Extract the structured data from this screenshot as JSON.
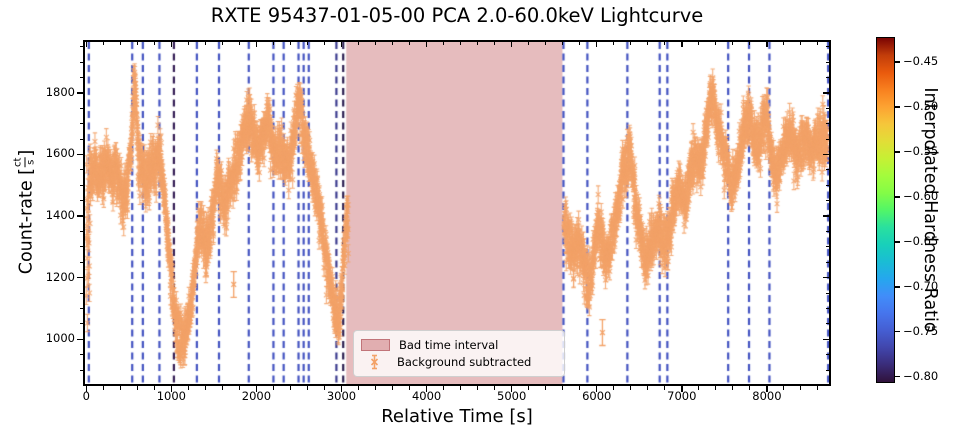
{
  "figure": {
    "title": "RXTE 95437-01-05-00 PCA 2.0-60.0keV Lightcurve",
    "xlabel": "Relative Time [s]",
    "ylabel_prefix": "Count-rate [",
    "ylabel_frac_num": "ct",
    "ylabel_frac_den": "s",
    "ylabel_suffix": "]"
  },
  "legend": {
    "bad_time_label": "Bad time interval",
    "background_label": "Background subtracted"
  },
  "colorbar": {
    "label": "Interpolated Hardness Ratio",
    "colormap": "turbo",
    "value_range": [
      -0.807,
      -0.422
    ],
    "ticks": [
      -0.45,
      -0.5,
      -0.55,
      -0.6,
      -0.65,
      -0.7,
      -0.75,
      -0.8
    ],
    "tick_labels": [
      "−0.45",
      "−0.50",
      "−0.55",
      "−0.60",
      "−0.65",
      "−0.70",
      "−0.75",
      "−0.80"
    ],
    "gradient_stops": [
      [
        0,
        "#30123b"
      ],
      [
        5,
        "#3a2c79"
      ],
      [
        10,
        "#4146ac"
      ],
      [
        15,
        "#455ed2"
      ],
      [
        20,
        "#4675ed"
      ],
      [
        25,
        "#418df9"
      ],
      [
        30,
        "#25a7ee"
      ],
      [
        35,
        "#1abdd4"
      ],
      [
        40,
        "#18d0ba"
      ],
      [
        45,
        "#2ae09e"
      ],
      [
        50,
        "#52f667"
      ],
      [
        55,
        "#84fc46"
      ],
      [
        60,
        "#a4fc3c"
      ],
      [
        65,
        "#c6f034"
      ],
      [
        70,
        "#e2dd37"
      ],
      [
        75,
        "#f6c63a"
      ],
      [
        80,
        "#fda332"
      ],
      [
        85,
        "#f8801f"
      ],
      [
        90,
        "#e95a0d"
      ],
      [
        95,
        "#c23d0a"
      ],
      [
        100,
        "#7a0403"
      ]
    ]
  },
  "chart_data": {
    "type": "scatter",
    "title": "RXTE 95437-01-05-00 PCA 2.0-60.0keV Lightcurve",
    "xlabel": "Relative Time [s]",
    "ylabel": "Count-rate [ct/s]",
    "xlim": [
      -15,
      8730
    ],
    "ylim": [
      855,
      1965
    ],
    "x_ticks": [
      0,
      1000,
      2000,
      3000,
      4000,
      5000,
      6000,
      7000,
      8000
    ],
    "x_tick_labels": [
      "0",
      "1000",
      "2000",
      "3000",
      "4000",
      "5000",
      "6000",
      "7000",
      "8000"
    ],
    "x_minor_step": 200,
    "y_ticks": [
      1000,
      1200,
      1400,
      1600,
      1800
    ],
    "y_tick_labels": [
      "1000",
      "1200",
      "1400",
      "1600",
      "1800"
    ],
    "y_minor_step": 50,
    "grid": false,
    "legend_position": "lower center",
    "bad_time_interval": {
      "start": 3056,
      "end": 5597,
      "color": "rgba(199,106,110,0.45)",
      "label": "Bad time interval"
    },
    "vlines": [
      {
        "t": 30,
        "color": "#4353c1"
      },
      {
        "t": 540,
        "color": "#4353c1"
      },
      {
        "t": 665,
        "color": "#4353c1"
      },
      {
        "t": 860,
        "color": "#4353c1"
      },
      {
        "t": 1030,
        "color": "#341e55"
      },
      {
        "t": 1300,
        "color": "#4353c1"
      },
      {
        "t": 1560,
        "color": "#4353c1"
      },
      {
        "t": 1910,
        "color": "#4353c1"
      },
      {
        "t": 2200,
        "color": "#4353c1"
      },
      {
        "t": 2320,
        "color": "#4353c1"
      },
      {
        "t": 2495,
        "color": "#4353c1"
      },
      {
        "t": 2555,
        "color": "#4353c1"
      },
      {
        "t": 2615,
        "color": "#4353c1"
      },
      {
        "t": 2940,
        "color": "#3c3c8f"
      },
      {
        "t": 3020,
        "color": "#2c1f52"
      },
      {
        "t": 5609,
        "color": "#4353c1"
      },
      {
        "t": 5890,
        "color": "#4353c1"
      },
      {
        "t": 6360,
        "color": "#4353c1"
      },
      {
        "t": 6740,
        "color": "#4353c1"
      },
      {
        "t": 6830,
        "color": "#4353c1"
      },
      {
        "t": 7545,
        "color": "#4353c1"
      },
      {
        "t": 7790,
        "color": "#4353c1"
      },
      {
        "t": 8030,
        "color": "#4353c1"
      },
      {
        "t": 8720,
        "color": "#4353c1"
      }
    ],
    "series": [
      {
        "name": "Background subtracted",
        "marker": "x",
        "color": "#f3a268",
        "segments": [
          [
            0,
            3080
          ],
          [
            5615,
            8710
          ]
        ],
        "sample_step": 2,
        "noise_sigma": 38,
        "start_burst": {
          "t_end": 50,
          "sigma": 165
        },
        "error_bar": 28,
        "envelope": [
          [
            0,
            1250
          ],
          [
            20,
            1300
          ],
          [
            45,
            1500
          ],
          [
            100,
            1550
          ],
          [
            150,
            1520
          ],
          [
            200,
            1560
          ],
          [
            250,
            1570
          ],
          [
            300,
            1540
          ],
          [
            350,
            1560
          ],
          [
            400,
            1500
          ],
          [
            440,
            1440
          ],
          [
            480,
            1510
          ],
          [
            520,
            1600
          ],
          [
            555,
            1750
          ],
          [
            570,
            1860
          ],
          [
            585,
            1760
          ],
          [
            610,
            1620
          ],
          [
            650,
            1550
          ],
          [
            700,
            1500
          ],
          [
            750,
            1540
          ],
          [
            800,
            1560
          ],
          [
            840,
            1600
          ],
          [
            880,
            1560
          ],
          [
            920,
            1460
          ],
          [
            960,
            1330
          ],
          [
            1000,
            1180
          ],
          [
            1050,
            1050
          ],
          [
            1100,
            1005
          ],
          [
            1150,
            1000
          ],
          [
            1200,
            1060
          ],
          [
            1250,
            1170
          ],
          [
            1300,
            1310
          ],
          [
            1340,
            1370
          ],
          [
            1380,
            1330
          ],
          [
            1420,
            1300
          ],
          [
            1460,
            1360
          ],
          [
            1500,
            1440
          ],
          [
            1540,
            1520
          ],
          [
            1580,
            1490
          ],
          [
            1620,
            1450
          ],
          [
            1660,
            1470
          ],
          [
            1700,
            1520
          ],
          [
            1740,
            1540
          ],
          [
            1780,
            1570
          ],
          [
            1820,
            1620
          ],
          [
            1860,
            1680
          ],
          [
            1900,
            1720
          ],
          [
            1940,
            1690
          ],
          [
            1980,
            1640
          ],
          [
            2020,
            1610
          ],
          [
            2060,
            1650
          ],
          [
            2100,
            1690
          ],
          [
            2140,
            1700
          ],
          [
            2180,
            1640
          ],
          [
            2220,
            1590
          ],
          [
            2260,
            1600
          ],
          [
            2300,
            1610
          ],
          [
            2340,
            1570
          ],
          [
            2380,
            1580
          ],
          [
            2420,
            1620
          ],
          [
            2460,
            1700
          ],
          [
            2500,
            1790
          ],
          [
            2530,
            1720
          ],
          [
            2560,
            1640
          ],
          [
            2600,
            1610
          ],
          [
            2640,
            1570
          ],
          [
            2680,
            1520
          ],
          [
            2720,
            1460
          ],
          [
            2760,
            1390
          ],
          [
            2800,
            1310
          ],
          [
            2840,
            1240
          ],
          [
            2880,
            1170
          ],
          [
            2920,
            1100
          ],
          [
            2960,
            1060
          ],
          [
            3000,
            1150
          ],
          [
            3030,
            1280
          ],
          [
            3060,
            1400
          ],
          [
            5620,
            1380
          ],
          [
            5660,
            1350
          ],
          [
            5700,
            1310
          ],
          [
            5740,
            1280
          ],
          [
            5780,
            1290
          ],
          [
            5820,
            1270
          ],
          [
            5860,
            1230
          ],
          [
            5900,
            1180
          ],
          [
            5940,
            1220
          ],
          [
            5980,
            1320
          ],
          [
            6020,
            1380
          ],
          [
            6060,
            1330
          ],
          [
            6100,
            1260
          ],
          [
            6140,
            1280
          ],
          [
            6180,
            1340
          ],
          [
            6220,
            1390
          ],
          [
            6260,
            1440
          ],
          [
            6300,
            1520
          ],
          [
            6350,
            1580
          ],
          [
            6400,
            1600
          ],
          [
            6440,
            1500
          ],
          [
            6480,
            1390
          ],
          [
            6520,
            1320
          ],
          [
            6560,
            1280
          ],
          [
            6600,
            1260
          ],
          [
            6640,
            1300
          ],
          [
            6680,
            1340
          ],
          [
            6720,
            1370
          ],
          [
            6760,
            1330
          ],
          [
            6800,
            1300
          ],
          [
            6840,
            1340
          ],
          [
            6880,
            1390
          ],
          [
            6920,
            1440
          ],
          [
            6960,
            1490
          ],
          [
            7000,
            1470
          ],
          [
            7040,
            1440
          ],
          [
            7080,
            1510
          ],
          [
            7120,
            1570
          ],
          [
            7160,
            1600
          ],
          [
            7200,
            1560
          ],
          [
            7240,
            1590
          ],
          [
            7280,
            1660
          ],
          [
            7320,
            1750
          ],
          [
            7360,
            1790
          ],
          [
            7400,
            1720
          ],
          [
            7440,
            1670
          ],
          [
            7480,
            1630
          ],
          [
            7520,
            1580
          ],
          [
            7560,
            1530
          ],
          [
            7600,
            1490
          ],
          [
            7640,
            1540
          ],
          [
            7680,
            1620
          ],
          [
            7720,
            1670
          ],
          [
            7760,
            1710
          ],
          [
            7800,
            1730
          ],
          [
            7840,
            1670
          ],
          [
            7880,
            1620
          ],
          [
            7920,
            1650
          ],
          [
            7960,
            1700
          ],
          [
            8000,
            1720
          ],
          [
            8040,
            1630
          ],
          [
            8080,
            1550
          ],
          [
            8120,
            1540
          ],
          [
            8160,
            1580
          ],
          [
            8200,
            1620
          ],
          [
            8240,
            1650
          ],
          [
            8280,
            1670
          ],
          [
            8320,
            1630
          ],
          [
            8360,
            1600
          ],
          [
            8400,
            1630
          ],
          [
            8440,
            1650
          ],
          [
            8480,
            1640
          ],
          [
            8520,
            1610
          ],
          [
            8560,
            1630
          ],
          [
            8600,
            1650
          ],
          [
            8640,
            1640
          ],
          [
            8690,
            1650
          ]
        ],
        "outliers": [
          [
            1147,
            958
          ],
          [
            1405,
            1245
          ],
          [
            1733,
            1178
          ],
          [
            6067,
            1022
          ]
        ]
      }
    ]
  }
}
